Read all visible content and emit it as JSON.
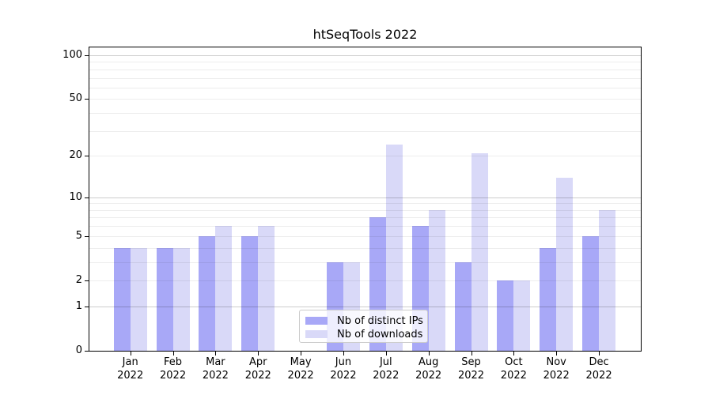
{
  "title": "htSeqTools 2022",
  "colors": {
    "ips_bar": "#a8a8f7",
    "downloads_bar": "#d9d9f8",
    "major_grid": "rgba(0,0,0,0.20)",
    "minor_grid": "rgba(0,0,0,0.07)",
    "axis_line": "#000000",
    "legend_border": "#cccccc",
    "legend_background": "rgba(255,255,255,0.8)"
  },
  "chart_data": {
    "type": "bar",
    "title": "htSeqTools 2022",
    "x_months": [
      "Jan",
      "Feb",
      "Mar",
      "Apr",
      "May",
      "Jun",
      "Jul",
      "Aug",
      "Sep",
      "Oct",
      "Nov",
      "Dec"
    ],
    "x_year": "2022",
    "categories": [
      "Jan 2022",
      "Feb 2022",
      "Mar 2022",
      "Apr 2022",
      "May 2022",
      "Jun 2022",
      "Jul 2022",
      "Aug 2022",
      "Sep 2022",
      "Oct 2022",
      "Nov 2022",
      "Dec 2022"
    ],
    "series": [
      {
        "name": "Nb of distinct IPs",
        "color": "#a8a8f7",
        "values": [
          4,
          4,
          5,
          5,
          0,
          3,
          7,
          6,
          3,
          2,
          4,
          5
        ]
      },
      {
        "name": "Nb of downloads",
        "color": "#d9d9f8",
        "values": [
          4,
          4,
          6,
          6,
          0,
          3,
          24,
          8,
          21,
          2,
          14,
          8
        ]
      }
    ],
    "yscale": "log10(1+x)",
    "ylim": [
      0,
      113
    ],
    "y_tick_labels": [
      "0",
      "1",
      "2",
      "5",
      "10",
      "20",
      "50",
      "100"
    ],
    "y_tick_values": [
      0,
      1,
      2,
      5,
      10,
      20,
      50,
      100
    ],
    "y_major_gridlines": [
      1,
      10,
      100
    ],
    "y_minor_gridlines": [
      2,
      3,
      4,
      5,
      6,
      7,
      8,
      9,
      20,
      30,
      40,
      50,
      60,
      70,
      80,
      90
    ],
    "grid": "horizontal",
    "legend_position": "lower center"
  }
}
